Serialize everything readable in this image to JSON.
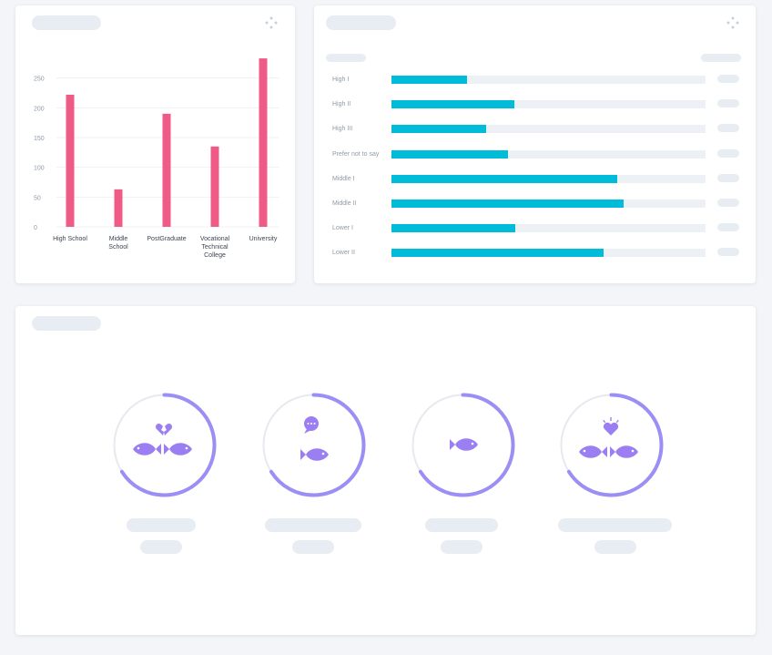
{
  "chart_data": [
    {
      "type": "bar",
      "categories": [
        "High School",
        "Middle School",
        "PostGraduate",
        "Vocational Technical College",
        "University"
      ],
      "category_lines": [
        [
          "High School"
        ],
        [
          "Middle",
          "School"
        ],
        [
          "PostGraduate"
        ],
        [
          "Vocational",
          "Technical",
          "College"
        ],
        [
          "University"
        ]
      ],
      "values": [
        222,
        63,
        190,
        135,
        283
      ],
      "ylim": [
        0,
        300
      ],
      "yticks": [
        0,
        50,
        100,
        150,
        200,
        250
      ],
      "color": "#ef5a86",
      "grid": true
    },
    {
      "type": "bar",
      "orientation": "horizontal",
      "categories": [
        "High I",
        "High II",
        "High III",
        "Prefer not to say",
        "Middle I",
        "Middle II",
        "Lower I",
        "Lower II"
      ],
      "values": [
        0.24,
        0.39,
        0.3,
        0.37,
        0.72,
        0.74,
        0.395,
        0.675
      ],
      "color": "#00bcd9",
      "track_color": "#edf1f6"
    }
  ],
  "gauges": [
    {
      "icon": "broken-heart-fish-pair-icon",
      "progress": 0.66
    },
    {
      "icon": "speech-bubble-fish-icon",
      "progress": 0.66
    },
    {
      "icon": "fish-icon",
      "progress": 0.66
    },
    {
      "icon": "heart-fish-pair-icon",
      "progress": 0.66
    }
  ],
  "colors": {
    "gauge": "#9b8ef5",
    "gauge_track": "#e6e9ee",
    "icon": "#9b7ff2"
  }
}
